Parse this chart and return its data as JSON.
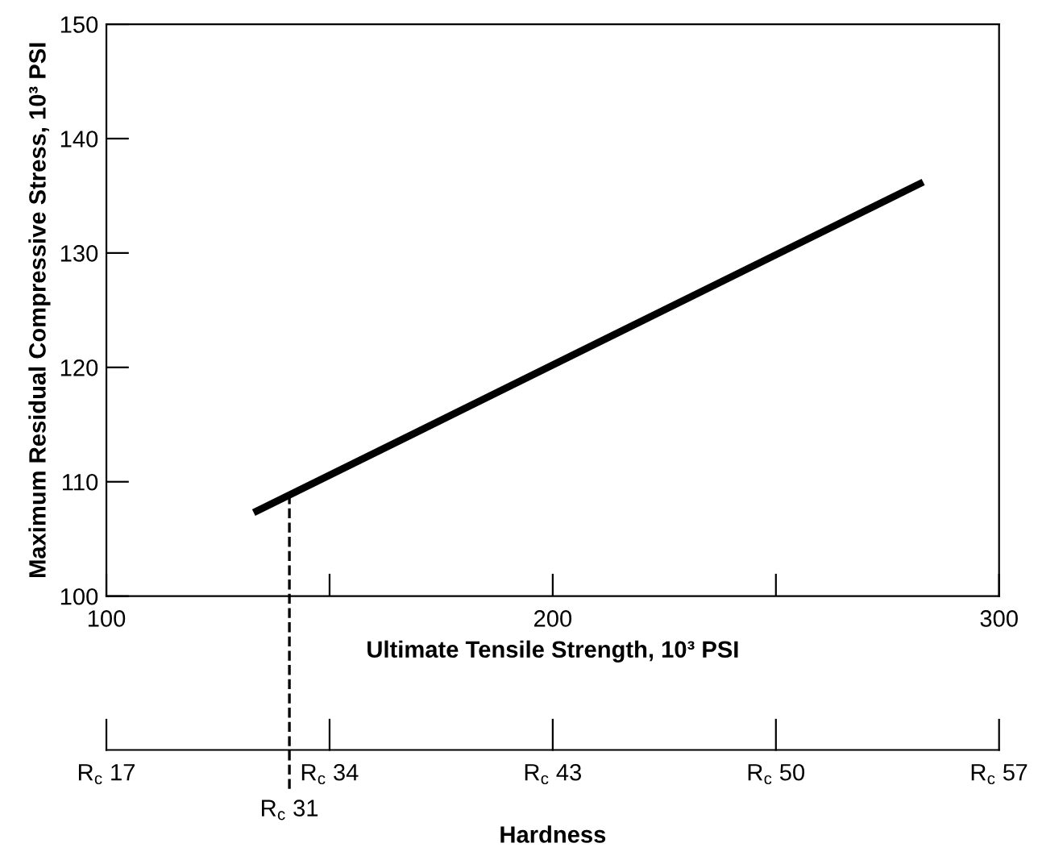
{
  "chart_data": [
    {
      "type": "line",
      "xlabel": "Ultimate Tensile Strength, 10³ PSI",
      "ylabel": "Maximum Residual Compressive Stress, 10³ PSI",
      "series": [
        {
          "color": "#000000",
          "x": [
            133,
            283
          ],
          "values": [
            107.3,
            136.2
          ]
        }
      ],
      "xlim": [
        100,
        300
      ],
      "ylim": [
        100,
        150
      ],
      "xticks": [
        100,
        {
          "value": 150,
          "label": null
        },
        200,
        {
          "value": 250,
          "label": null
        },
        300
      ],
      "yticks": [
        100,
        110,
        120,
        130,
        140,
        150
      ],
      "line_style": "solid",
      "marker": "none",
      "ref_lines": [
        {
          "axis": "x",
          "value": 141,
          "label": "R$_{c}$ 31",
          "line_style": "dashed",
          "color": "#000000"
        }
      ]
    },
    {
      "type": "other",
      "xlabel": "Hardness",
      "categories": [
        "R$_{c}$ 17",
        "R$_{c}$ 34",
        "R$_{c}$ 43",
        "R$_{c}$ 50",
        "R$_{c}$ 57"
      ]
    }
  ]
}
